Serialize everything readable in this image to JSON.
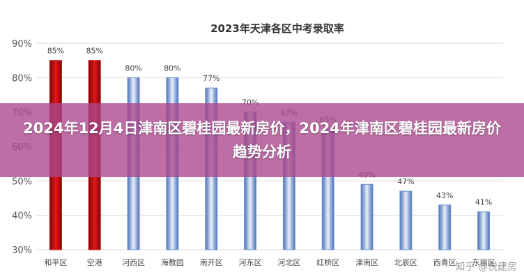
{
  "chart_data": {
    "type": "bar",
    "title": "2023年天津各区中考录取率",
    "categories": [
      "和平区",
      "空港",
      "河西区",
      "海教园",
      "南开区",
      "河东区",
      "河北区",
      "红桥区",
      "津南区",
      "北辰区",
      "西青区",
      "东丽区"
    ],
    "values": [
      85,
      85,
      80,
      80,
      77,
      70,
      67,
      65,
      49,
      47,
      43,
      41
    ],
    "data_labels": [
      "85%",
      "85%",
      "80%",
      "80%",
      "77%",
      "70%",
      "67%",
      "65%",
      "49%",
      "47%",
      "43%",
      "41%"
    ],
    "yticks": [
      "30%",
      "40%",
      "50%",
      "60%",
      "70%",
      "80%",
      "90%"
    ],
    "ylim": [
      30,
      90
    ],
    "grid": true,
    "bar_colors": {
      "highlight": "#cc1111",
      "normal": "#6f93d0"
    },
    "highlight_count": 2
  },
  "overlay": {
    "title": "2024年12月4日津南区碧桂园最新房价，2024年津南区碧桂园最新房价趋势分析"
  },
  "watermark": "知乎 @悦建房"
}
